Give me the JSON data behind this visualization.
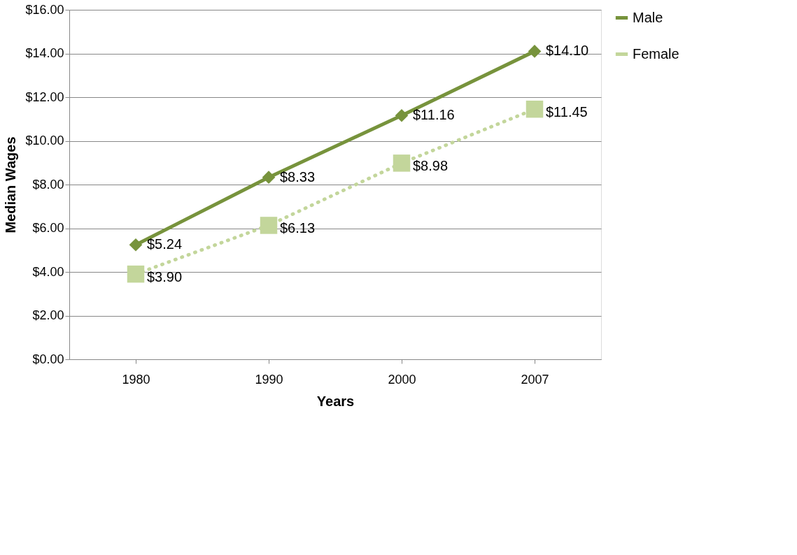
{
  "chart_data": {
    "type": "line",
    "xlabel": "Years",
    "ylabel": "Median Wages",
    "categories": [
      "1980",
      "1990",
      "2000",
      "2007"
    ],
    "series": [
      {
        "name": "Male",
        "color": "#77933c",
        "values": [
          5.24,
          8.33,
          11.16,
          14.1
        ],
        "value_labels": [
          "$5.24",
          "$8.33",
          "$11.16",
          "$14.10"
        ],
        "marker": "diamond",
        "line_style": "solid"
      },
      {
        "name": "Female",
        "color": "#c3d69b",
        "values": [
          3.9,
          6.13,
          8.98,
          11.45
        ],
        "value_labels": [
          "$3.90",
          "$6.13",
          "$8.98",
          "$11.45"
        ],
        "marker": "square",
        "line_style": "dotted"
      }
    ],
    "ylim": [
      0,
      16
    ],
    "yticks": [
      {
        "value": 0,
        "label": "$0.00"
      },
      {
        "value": 2,
        "label": "$2.00"
      },
      {
        "value": 4,
        "label": "$4.00"
      },
      {
        "value": 6,
        "label": "$6.00"
      },
      {
        "value": 8,
        "label": "$8.00"
      },
      {
        "value": 10,
        "label": "$10.00"
      },
      {
        "value": 12,
        "label": "$12.00"
      },
      {
        "value": 14,
        "label": "$14.00"
      },
      {
        "value": 16,
        "label": "$16.00"
      }
    ],
    "grid": "y",
    "legend": "right"
  }
}
